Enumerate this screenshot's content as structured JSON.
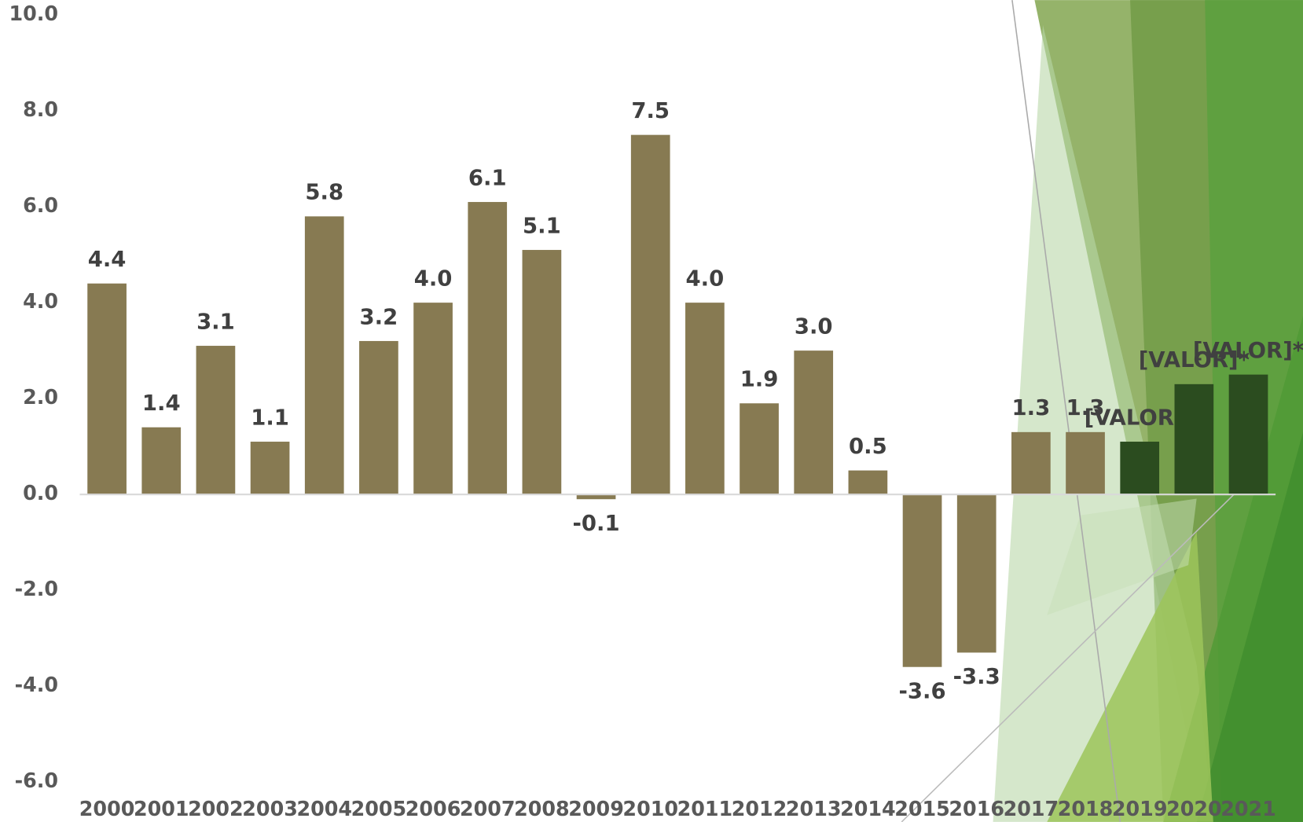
{
  "chart_data": {
    "type": "bar",
    "categories": [
      "2000",
      "2001",
      "2002",
      "2003",
      "2004",
      "2005",
      "2006",
      "2007",
      "2008",
      "2009",
      "2010",
      "2011",
      "2012",
      "2013",
      "2014",
      "2015",
      "2016",
      "2017",
      "2018",
      "2019",
      "2020",
      "2021"
    ],
    "values": [
      4.4,
      1.4,
      3.1,
      1.1,
      5.8,
      3.2,
      4.0,
      6.1,
      5.1,
      -0.1,
      7.5,
      4.0,
      1.9,
      3.0,
      0.5,
      -3.6,
      -3.3,
      1.3,
      1.3,
      1.1,
      2.3,
      2.5
    ],
    "value_labels": [
      "4.4",
      "1.4",
      "3.1",
      "1.1",
      "5.8",
      "3.2",
      "4.0",
      "6.1",
      "5.1",
      "-0.1",
      "7.5",
      "4.0",
      "1.9",
      "3.0",
      "0.5",
      "-3.6",
      "-3.3",
      "1.3",
      "1.3",
      "[VALOR]*",
      "[VALOR]*",
      "[VALOR]*"
    ],
    "colors": [
      "#877a52",
      "#877a52",
      "#877a52",
      "#877a52",
      "#877a52",
      "#877a52",
      "#877a52",
      "#877a52",
      "#877a52",
      "#877a52",
      "#877a52",
      "#877a52",
      "#877a52",
      "#877a52",
      "#877a52",
      "#877a52",
      "#877a52",
      "#877a52",
      "#877a52",
      "#2b4c1f",
      "#2b4c1f",
      "#2b4c1f"
    ],
    "ylim": [
      -6,
      10
    ],
    "yticks": [
      {
        "value": -6,
        "label": "-6.0"
      },
      {
        "value": -4,
        "label": "-4.0"
      },
      {
        "value": -2,
        "label": "-2.0"
      },
      {
        "value": 0,
        "label": "0.0"
      },
      {
        "value": 2,
        "label": "2.0"
      },
      {
        "value": 4,
        "label": "4.0"
      },
      {
        "value": 6,
        "label": "6.0"
      },
      {
        "value": 8,
        "label": "8.0"
      },
      {
        "value": 10,
        "label": "10.0"
      }
    ],
    "grid": false
  }
}
